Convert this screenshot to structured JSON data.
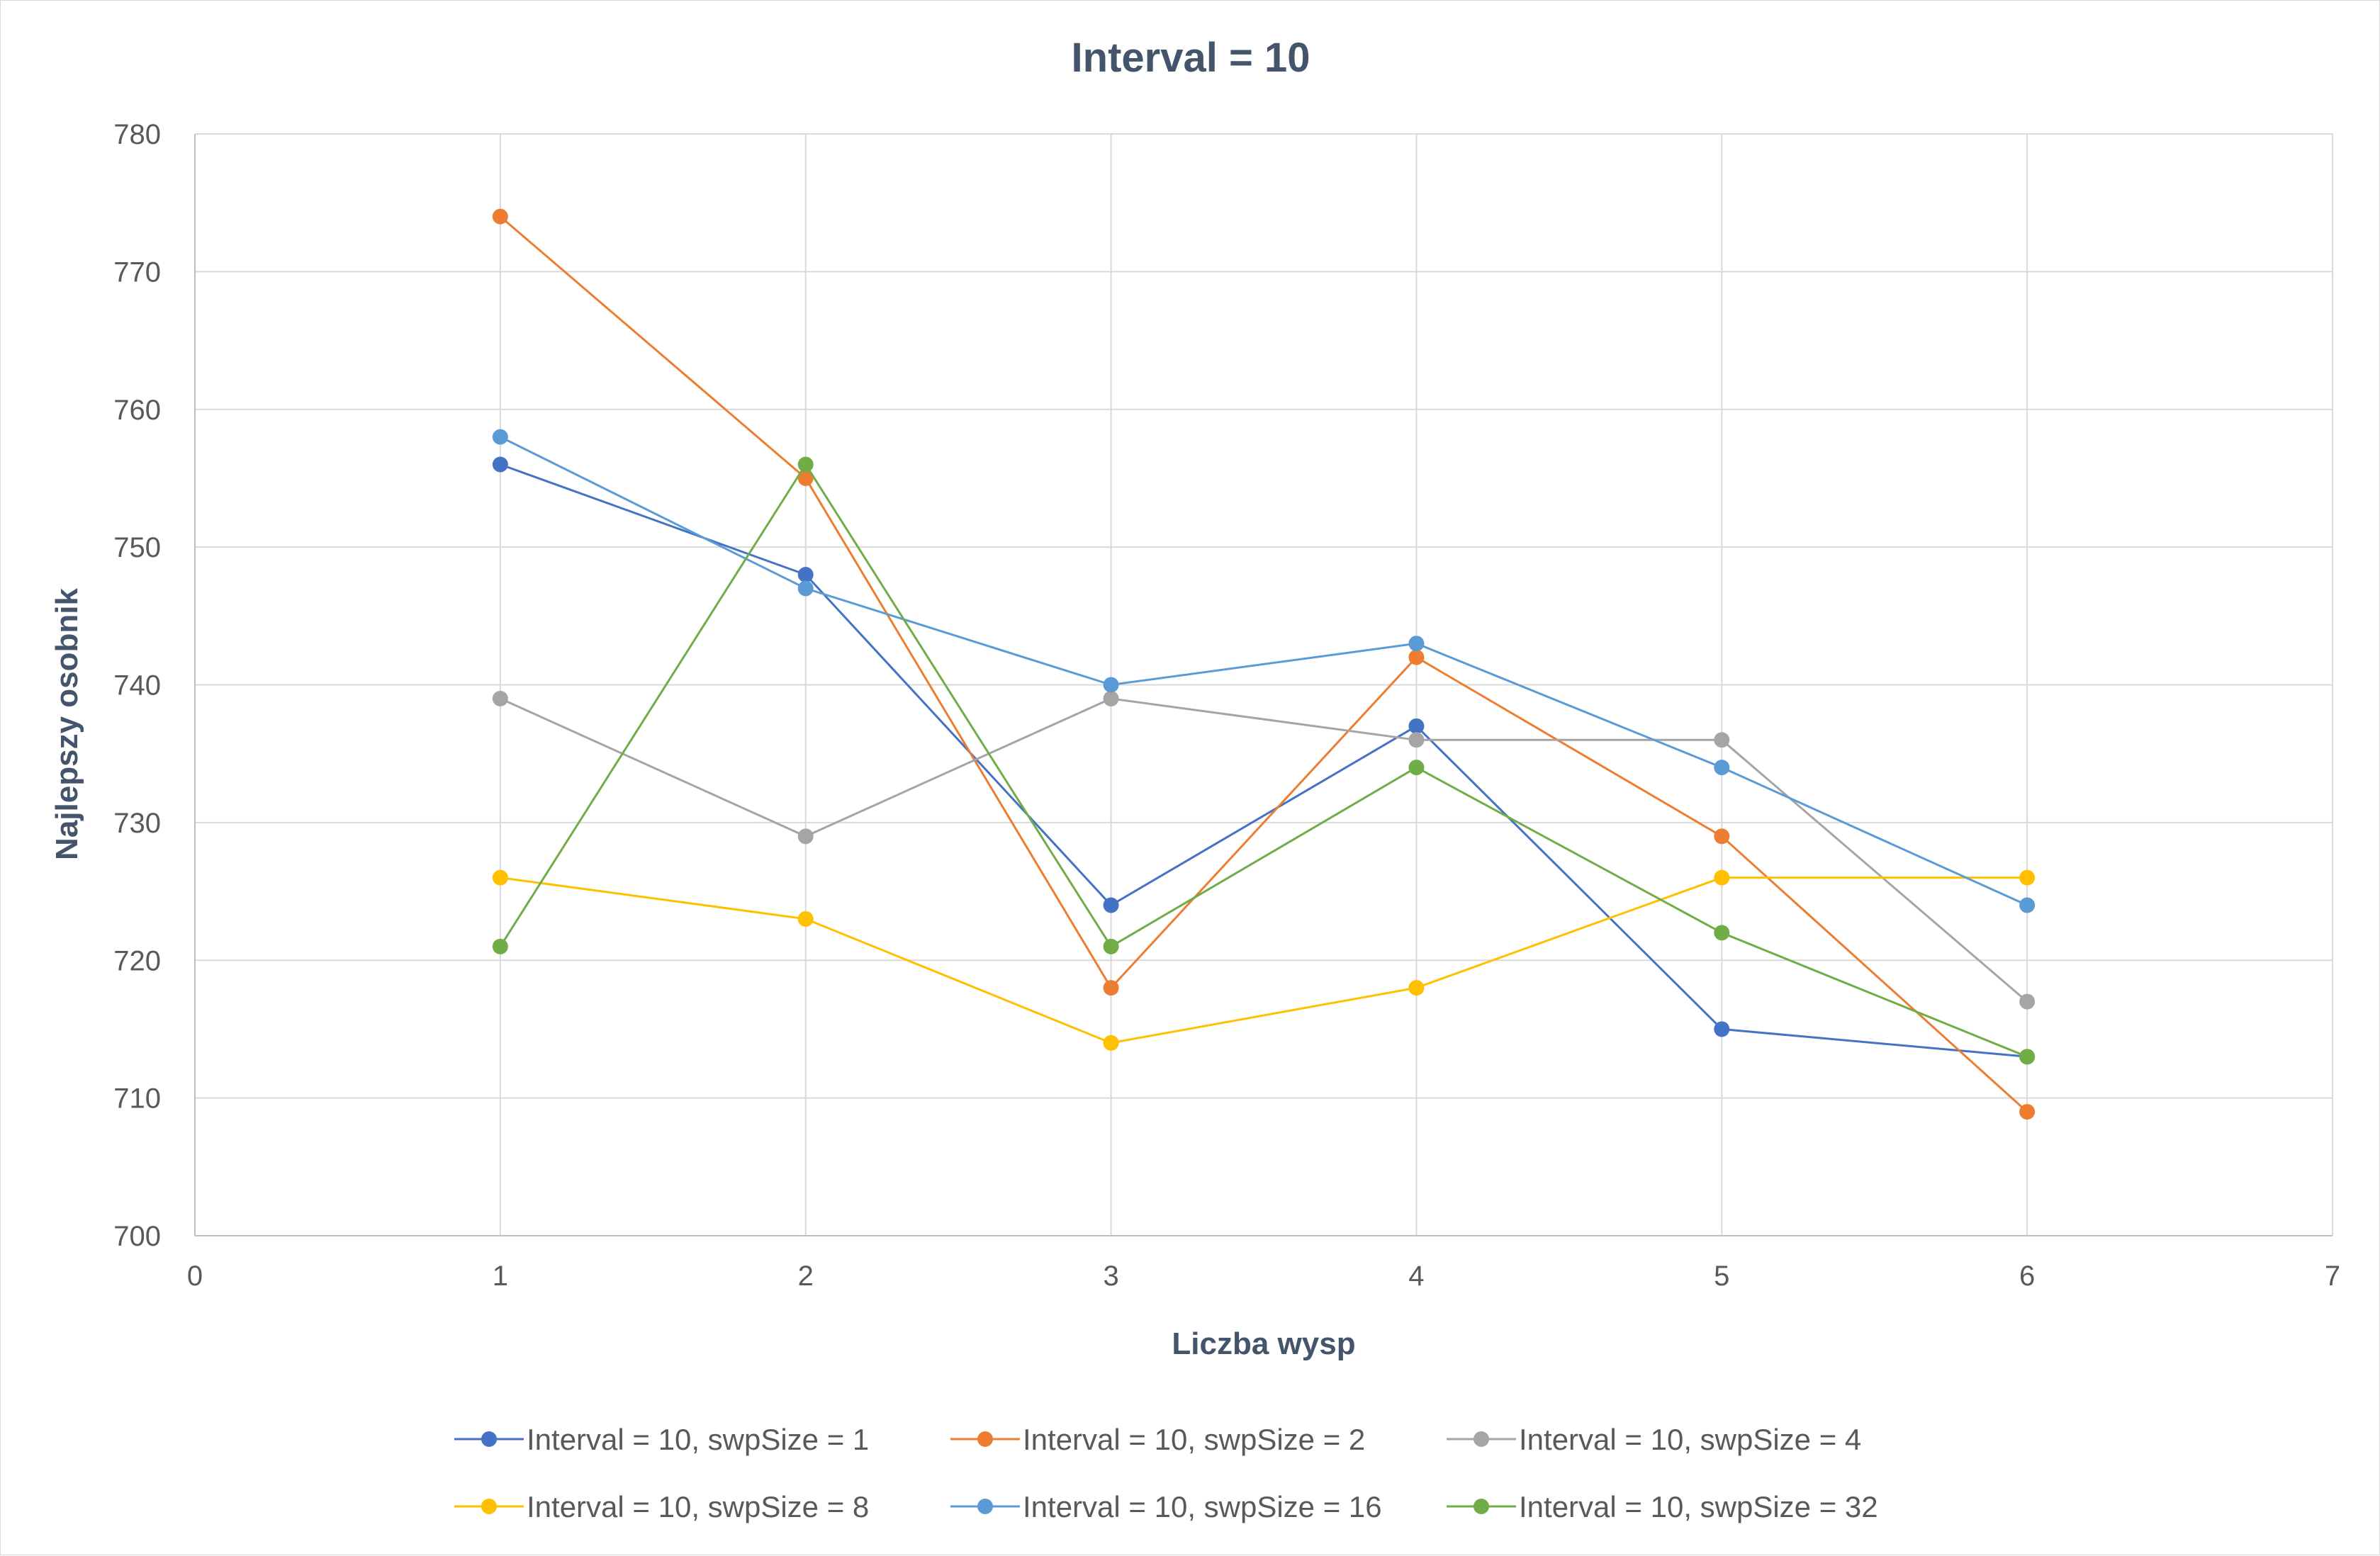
{
  "chart_data": {
    "type": "line",
    "title": "Interval = 10",
    "xlabel": "Liczba wysp",
    "ylabel": "Najlepszy osobnik",
    "xlim": [
      0,
      7
    ],
    "ylim": [
      700,
      780
    ],
    "x_ticks": [
      0,
      1,
      2,
      3,
      4,
      5,
      6,
      7
    ],
    "y_ticks": [
      700,
      710,
      720,
      730,
      740,
      750,
      760,
      770,
      780
    ],
    "grid": true,
    "legend_position": "bottom",
    "x": [
      1,
      2,
      3,
      4,
      5,
      6
    ],
    "series": [
      {
        "name": "Interval = 10, swpSize = 1",
        "color": "#4472c4",
        "values": [
          756,
          748,
          724,
          737,
          715,
          713
        ]
      },
      {
        "name": "Interval = 10, swpSize = 2",
        "color": "#ed7d31",
        "values": [
          774,
          755,
          718,
          742,
          729,
          709
        ]
      },
      {
        "name": "Interval = 10, swpSize = 4",
        "color": "#a5a5a5",
        "values": [
          739,
          729,
          739,
          736,
          736,
          717
        ]
      },
      {
        "name": "Interval = 10, swpSize = 8",
        "color": "#ffc000",
        "values": [
          726,
          723,
          714,
          718,
          726,
          726
        ]
      },
      {
        "name": "Interval = 10, swpSize = 16",
        "color": "#5b9bd5",
        "values": [
          758,
          747,
          740,
          743,
          734,
          724
        ]
      },
      {
        "name": "Interval = 10, swpSize = 32",
        "color": "#70ad47",
        "values": [
          721,
          756,
          721,
          734,
          722,
          713
        ]
      }
    ]
  }
}
